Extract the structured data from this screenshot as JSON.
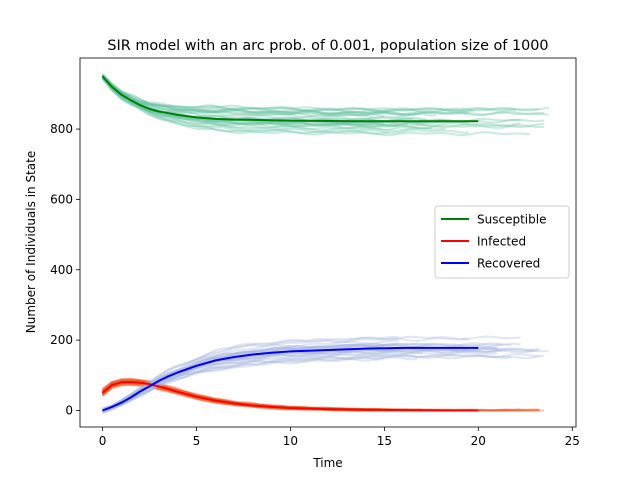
{
  "chart_data": {
    "type": "line",
    "title": "SIR model with an arc prob. of 0.001, population size of 1000",
    "xlabel": "Time",
    "ylabel": "Number of Individuals in State",
    "xlim": [
      -1.2,
      25.2
    ],
    "ylim": [
      -47,
      1002
    ],
    "xticks": [
      0,
      5,
      10,
      15,
      20,
      25
    ],
    "yticks": [
      0,
      200,
      400,
      600,
      800
    ],
    "grid": false,
    "legend_position": "center-right",
    "series": [
      {
        "name": "Susceptible",
        "color": "#008000",
        "ensemble_color": "#66c2a4",
        "x": [
          0,
          0.5,
          1,
          1.5,
          2,
          2.5,
          3,
          3.5,
          4,
          5,
          6,
          7,
          8,
          9,
          10,
          12,
          14,
          16,
          18,
          20
        ],
        "values": [
          950,
          920,
          898,
          882,
          868,
          857,
          850,
          845,
          840,
          833,
          829,
          827,
          826,
          825,
          824,
          823,
          822,
          822,
          822,
          822
        ]
      },
      {
        "name": "Infected",
        "color": "#ff0000",
        "ensemble_color": "#f0602a",
        "x": [
          0,
          0.5,
          1,
          1.5,
          2,
          2.5,
          3,
          3.5,
          4,
          5,
          6,
          7,
          8,
          9,
          10,
          12,
          14,
          16,
          18,
          20
        ],
        "values": [
          50,
          72,
          80,
          81,
          79,
          75,
          68,
          61,
          53,
          39,
          28,
          20,
          14,
          10,
          7,
          4,
          2,
          1,
          0,
          0
        ]
      },
      {
        "name": "Recovered",
        "color": "#0000ff",
        "ensemble_color": "#a9b8dc",
        "x": [
          0,
          0.5,
          1,
          1.5,
          2,
          2.5,
          3,
          3.5,
          4,
          5,
          6,
          7,
          8,
          9,
          10,
          12,
          14,
          16,
          18,
          20
        ],
        "values": [
          0,
          10,
          22,
          37,
          54,
          69,
          84,
          97,
          108,
          127,
          142,
          152,
          159,
          164,
          168,
          172,
          176,
          178,
          178,
          178
        ]
      }
    ]
  }
}
